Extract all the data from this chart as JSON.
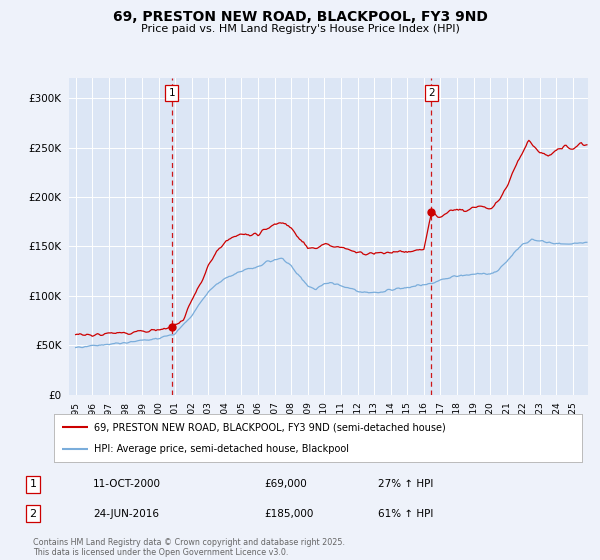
{
  "title": "69, PRESTON NEW ROAD, BLACKPOOL, FY3 9ND",
  "subtitle": "Price paid vs. HM Land Registry's House Price Index (HPI)",
  "bg_color": "#eef2fa",
  "plot_bg_color": "#dce6f5",
  "grid_color": "#ffffff",
  "sale1_date": "11-OCT-2000",
  "sale1_price": 69000,
  "sale1_pct": "27%",
  "sale2_date": "24-JUN-2016",
  "sale2_price": 185000,
  "sale2_pct": "61%",
  "legend_label1": "69, PRESTON NEW ROAD, BLACKPOOL, FY3 9ND (semi-detached house)",
  "legend_label2": "HPI: Average price, semi-detached house, Blackpool",
  "footer": "Contains HM Land Registry data © Crown copyright and database right 2025.\nThis data is licensed under the Open Government Licence v3.0.",
  "property_color": "#cc0000",
  "hpi_color": "#7aaddb",
  "vline_color": "#cc0000",
  "marker_color": "#cc0000",
  "ylim": [
    0,
    320000
  ],
  "yticks": [
    0,
    50000,
    100000,
    150000,
    200000,
    250000,
    300000
  ],
  "sale1_x": 2000.79,
  "sale1_y": 69000,
  "sale2_x": 2016.46,
  "sale2_y": 185000,
  "xmin": 1994.6,
  "xmax": 2025.9
}
